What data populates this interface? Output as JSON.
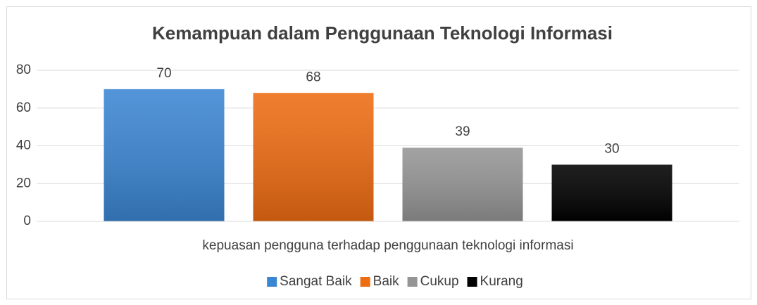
{
  "chart_data": {
    "type": "bar",
    "title": "Kemampuan dalam Penggunaan Teknologi Informasi",
    "categories": [
      "kepuasan pengguna terhadap penggunaan teknologi informasi"
    ],
    "series": [
      {
        "name": "Sangat Baik",
        "color": "#3b86d3",
        "values": [
          70
        ]
      },
      {
        "name": "Baik",
        "color": "#ee6c12",
        "values": [
          68
        ]
      },
      {
        "name": "Cukup",
        "color": "#959595",
        "values": [
          39
        ]
      },
      {
        "name": "Kurang",
        "color": "#000000",
        "values": [
          30
        ]
      }
    ],
    "ylim": [
      0,
      80
    ],
    "yticks": [
      0,
      20,
      40,
      60,
      80
    ],
    "grid": true,
    "legend": "bottom"
  }
}
